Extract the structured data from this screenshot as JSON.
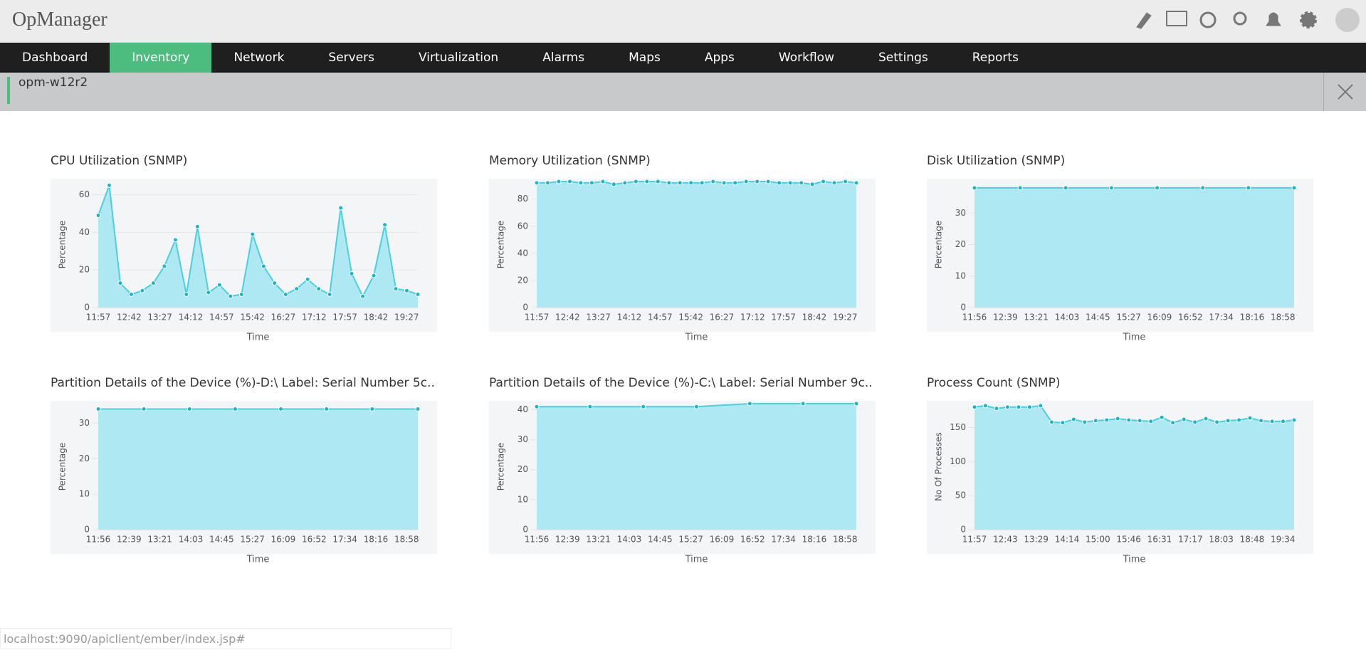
{
  "header": {
    "title": "OpManager"
  },
  "nav": [
    "Dashboard",
    "Inventory",
    "Network",
    "Servers",
    "Virtualization",
    "Alarms",
    "Maps",
    "Apps",
    "Workflow",
    "Settings",
    "Reports"
  ],
  "nav_active": 1,
  "device": {
    "name": "opm-w12r2"
  },
  "status": "localhost:9090/apiclient/ember/index.jsp#",
  "chart_data": [
    {
      "type": "area",
      "title": "CPU Utilization (SNMP)",
      "x_label": "Time",
      "y_label": "Percentage",
      "color": "#4ccfdc",
      "xtick_labels": [
        "11:57",
        "12:42",
        "13:27",
        "14:12",
        "14:57",
        "15:42",
        "16:27",
        "17:12",
        "17:57",
        "18:42",
        "19:27"
      ],
      "values": [
        49,
        65,
        13,
        7,
        9,
        13,
        22,
        36,
        7,
        43,
        8,
        12,
        6,
        7,
        39,
        22,
        13,
        7,
        10,
        15,
        10,
        7,
        53,
        18,
        6,
        17,
        44,
        10,
        9,
        7
      ],
      "ylim": [
        0,
        67
      ],
      "yticks": [
        0,
        20,
        40,
        60
      ],
      "grid": true
    },
    {
      "type": "area",
      "title": "Memory Utilization (SNMP)",
      "x_label": "Time",
      "y_label": "Percentage",
      "color": "#4ccfdc",
      "xtick_labels": [
        "11:57",
        "12:42",
        "13:27",
        "14:12",
        "14:57",
        "15:42",
        "16:27",
        "17:12",
        "17:57",
        "18:42",
        "19:27"
      ],
      "values": [
        92,
        92,
        93,
        93,
        92,
        92,
        93,
        91,
        92,
        93,
        93,
        93,
        92,
        92,
        92,
        92,
        93,
        92,
        92,
        93,
        93,
        93,
        92,
        92,
        92,
        91,
        93,
        92,
        93,
        92
      ],
      "ylim": [
        0,
        93
      ],
      "yticks": [
        0,
        20,
        40,
        60,
        80
      ],
      "grid": true
    },
    {
      "type": "area",
      "title": "Disk Utilization (SNMP)",
      "x_label": "Time",
      "y_label": "Percentage",
      "color": "#4ccfdc",
      "xtick_labels": [
        "11:56",
        "12:39",
        "13:21",
        "14:03",
        "14:45",
        "15:27",
        "16:09",
        "16:52",
        "17:34",
        "18:16",
        "18:58"
      ],
      "values": [
        38,
        38,
        38,
        38,
        38,
        38,
        38,
        38
      ],
      "ylim": [
        0,
        40
      ],
      "yticks": [
        0,
        10,
        20,
        30
      ],
      "grid": true
    },
    {
      "type": "area",
      "title": "Partition Details of the Device (%)-D:\\ Label: Serial Number 5c..",
      "x_label": "Time",
      "y_label": "Percentage",
      "color": "#4ccfdc",
      "xtick_labels": [
        "11:56",
        "12:39",
        "13:21",
        "14:03",
        "14:45",
        "15:27",
        "16:09",
        "16:52",
        "17:34",
        "18:16",
        "18:58"
      ],
      "values": [
        34,
        34,
        34,
        34,
        34,
        34,
        34,
        34
      ],
      "ylim": [
        0,
        35.5
      ],
      "yticks": [
        0,
        10,
        20,
        30
      ],
      "grid": true
    },
    {
      "type": "area",
      "title": "Partition Details of the Device (%)-C:\\ Label: Serial Number 9c..",
      "x_label": "Time",
      "y_label": "Percentage",
      "color": "#4ccfdc",
      "xtick_labels": [
        "11:56",
        "12:39",
        "13:21",
        "14:03",
        "14:45",
        "15:27",
        "16:09",
        "16:52",
        "17:34",
        "18:16",
        "18:58"
      ],
      "values": [
        41,
        41,
        41,
        41,
        42,
        42,
        42
      ],
      "ylim": [
        0,
        42
      ],
      "yticks": [
        0,
        10,
        20,
        30,
        40
      ],
      "grid": true
    },
    {
      "type": "area",
      "title": "Process Count (SNMP)",
      "x_label": "Time",
      "y_label": "No Of Processes",
      "color": "#4ccfdc",
      "xtick_labels": [
        "11:57",
        "12:43",
        "13:29",
        "14:14",
        "15:00",
        "15:46",
        "16:31",
        "17:17",
        "18:03",
        "18:48",
        "19:34"
      ],
      "values": [
        180,
        182,
        178,
        180,
        180,
        180,
        182,
        158,
        157,
        162,
        158,
        160,
        161,
        163,
        161,
        160,
        159,
        165,
        157,
        162,
        158,
        163,
        158,
        160,
        161,
        164,
        160,
        159,
        159,
        161
      ],
      "ylim": [
        0,
        185
      ],
      "yticks": [
        0,
        50,
        100,
        150
      ],
      "grid": true
    }
  ]
}
